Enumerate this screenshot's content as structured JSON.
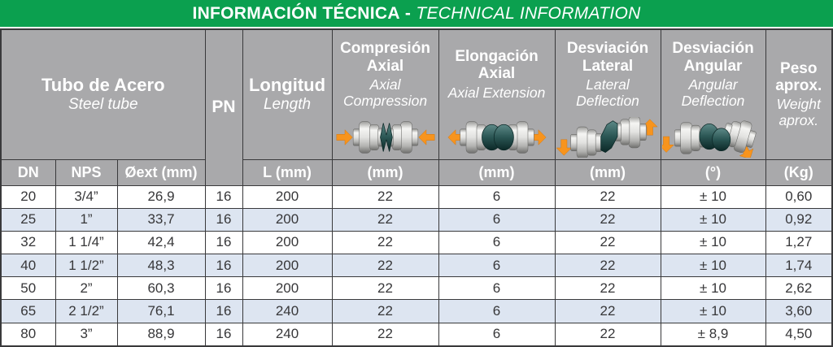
{
  "title_bar": {
    "es": "INFORMACIÓN TÉCNICA",
    "sep": " - ",
    "en": "TECHNICAL INFORMATION"
  },
  "header": {
    "steel_tube": {
      "es": "Tubo de Acero",
      "en": "Steel tube"
    },
    "pn": "PN",
    "length": {
      "es": "Longitud",
      "en": "Length"
    },
    "axial_compression": {
      "es": "Compresión Axial",
      "en": "Axial Compression",
      "icon": "axial-compression-icon"
    },
    "axial_extension": {
      "es": "Elongación Axial",
      "en": "Axial Extension",
      "icon": "axial-extension-icon"
    },
    "lateral_deflection": {
      "es": "Desviación Lateral",
      "en": "Lateral Deflection",
      "icon": "lateral-deflection-icon"
    },
    "angular_deflection": {
      "es": "Desviación Angular",
      "en": "Angular Deflection",
      "icon": "angular-deflection-icon"
    },
    "weight": {
      "es": "Peso aprox.",
      "en": "Weight aprox."
    }
  },
  "subheader": {
    "dn": "DN",
    "nps": "NPS",
    "oext": "Øext (mm)",
    "l": "L (mm)",
    "compression_unit": "(mm)",
    "extension_unit": "(mm)",
    "lateral_unit": "(mm)",
    "angular_unit": "(°)",
    "weight_unit": "(Kg)"
  },
  "column_keys": [
    "dn",
    "nps",
    "oext-mm",
    "pn",
    "l-mm",
    "axial-compression-mm",
    "axial-extension-mm",
    "lateral-deflection-mm",
    "angular-deflection-deg",
    "weight-kg"
  ],
  "rows": [
    [
      "20",
      "3/4”",
      "26,9",
      "16",
      "200",
      "22",
      "6",
      "22",
      "± 10",
      "0,60"
    ],
    [
      "25",
      "1”",
      "33,7",
      "16",
      "200",
      "22",
      "6",
      "22",
      "± 10",
      "0,92"
    ],
    [
      "32",
      "1 1/4”",
      "42,4",
      "16",
      "200",
      "22",
      "6",
      "22",
      "± 10",
      "1,27"
    ],
    [
      "40",
      "1 1/2”",
      "48,3",
      "16",
      "200",
      "22",
      "6",
      "22",
      "± 10",
      "1,74"
    ],
    [
      "50",
      "2”",
      "60,3",
      "16",
      "200",
      "22",
      "6",
      "22",
      "± 10",
      "2,62"
    ],
    [
      "65",
      "2 1/2”",
      "76,1",
      "16",
      "240",
      "22",
      "6",
      "22",
      "± 10",
      "3,60"
    ],
    [
      "80",
      "3”",
      "88,9",
      "16",
      "240",
      "22",
      "6",
      "22",
      "± 8,9",
      "4,50"
    ]
  ],
  "colors": {
    "title_green": "#0ba04f",
    "header_gray": "#a9a9ab",
    "row_stripe_blue": "#dde5f1",
    "border_dark": "#39393b",
    "arrow_orange": "#f7941d",
    "bellows_teal": "#2a5553"
  }
}
